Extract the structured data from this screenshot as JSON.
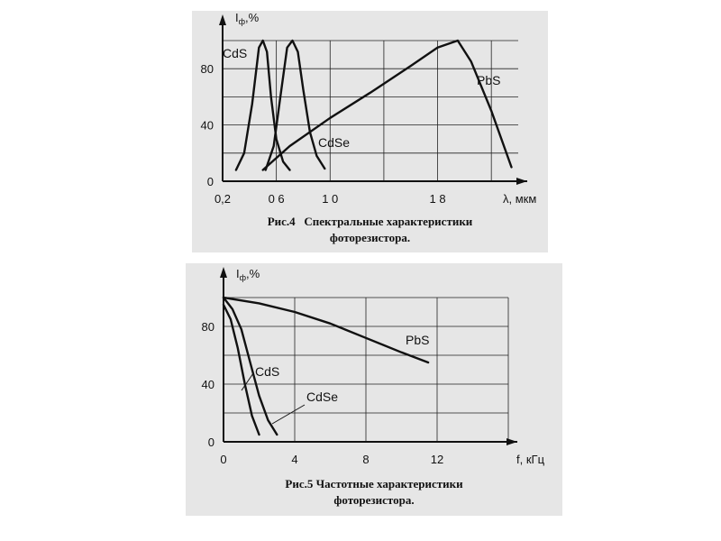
{
  "colors": {
    "panel": "#e6e6e6",
    "ink": "#111111",
    "grid": "#222222"
  },
  "chart_data": [
    {
      "type": "line",
      "ylabel_main": "I",
      "ylabel_sub": "ф",
      "ylabel_suffix": ",%",
      "xlabel": "λ, мкм",
      "xlim": [
        0.2,
        2.4
      ],
      "ylim": [
        0,
        100
      ],
      "x_tick_labels": [
        "0,2",
        "0 6",
        "1 0",
        "1 8"
      ],
      "x_tick_values": [
        0.2,
        0.6,
        1.0,
        1.8
      ],
      "y_tick_labels": [
        "0",
        "40",
        "80"
      ],
      "y_tick_values": [
        0,
        40,
        80
      ],
      "grid": true,
      "caption_lines": [
        "Рис.4   Спектральные характеристики",
        "фоторезистора."
      ],
      "series": [
        {
          "name": "CdS",
          "x": [
            0.3,
            0.36,
            0.42,
            0.47,
            0.5,
            0.53,
            0.56,
            0.6,
            0.65,
            0.7
          ],
          "y": [
            8,
            20,
            55,
            95,
            100,
            92,
            60,
            30,
            14,
            8
          ]
        },
        {
          "name": "CdSe",
          "x": [
            0.52,
            0.58,
            0.63,
            0.68,
            0.72,
            0.76,
            0.8,
            0.85,
            0.9,
            0.96
          ],
          "y": [
            8,
            25,
            60,
            95,
            100,
            92,
            65,
            35,
            18,
            9
          ]
        },
        {
          "name": "PbS",
          "x": [
            0.5,
            0.7,
            1.0,
            1.3,
            1.6,
            1.8,
            1.95,
            2.05,
            2.2,
            2.35
          ],
          "y": [
            8,
            25,
            45,
            63,
            82,
            95,
            100,
            85,
            50,
            10
          ]
        }
      ]
    },
    {
      "type": "line",
      "ylabel_main": "I",
      "ylabel_sub": "ф",
      "ylabel_suffix": ",%",
      "xlabel": "f, кГц",
      "xlim": [
        0,
        16
      ],
      "ylim": [
        0,
        100
      ],
      "x_tick_labels": [
        "0",
        "4",
        "8",
        "12"
      ],
      "x_tick_values": [
        0,
        4,
        8,
        12
      ],
      "y_tick_labels": [
        "0",
        "40",
        "80"
      ],
      "y_tick_values": [
        0,
        40,
        80
      ],
      "grid": true,
      "caption_lines": [
        "Рис.5 Частотные характеристики",
        "фоторезистора."
      ],
      "series": [
        {
          "name": "PbS",
          "x": [
            0,
            2,
            4,
            6,
            8,
            10,
            11.5
          ],
          "y": [
            100,
            96,
            90,
            82,
            72,
            62,
            55
          ]
        },
        {
          "name": "CdS",
          "x": [
            0,
            0.4,
            0.8,
            1.2,
            1.6,
            2.0
          ],
          "y": [
            95,
            85,
            65,
            40,
            18,
            5
          ]
        },
        {
          "name": "CdSe",
          "x": [
            0,
            0.5,
            1.0,
            1.5,
            2.0,
            2.5,
            3.0
          ],
          "y": [
            100,
            92,
            78,
            55,
            32,
            15,
            5
          ]
        }
      ]
    }
  ]
}
